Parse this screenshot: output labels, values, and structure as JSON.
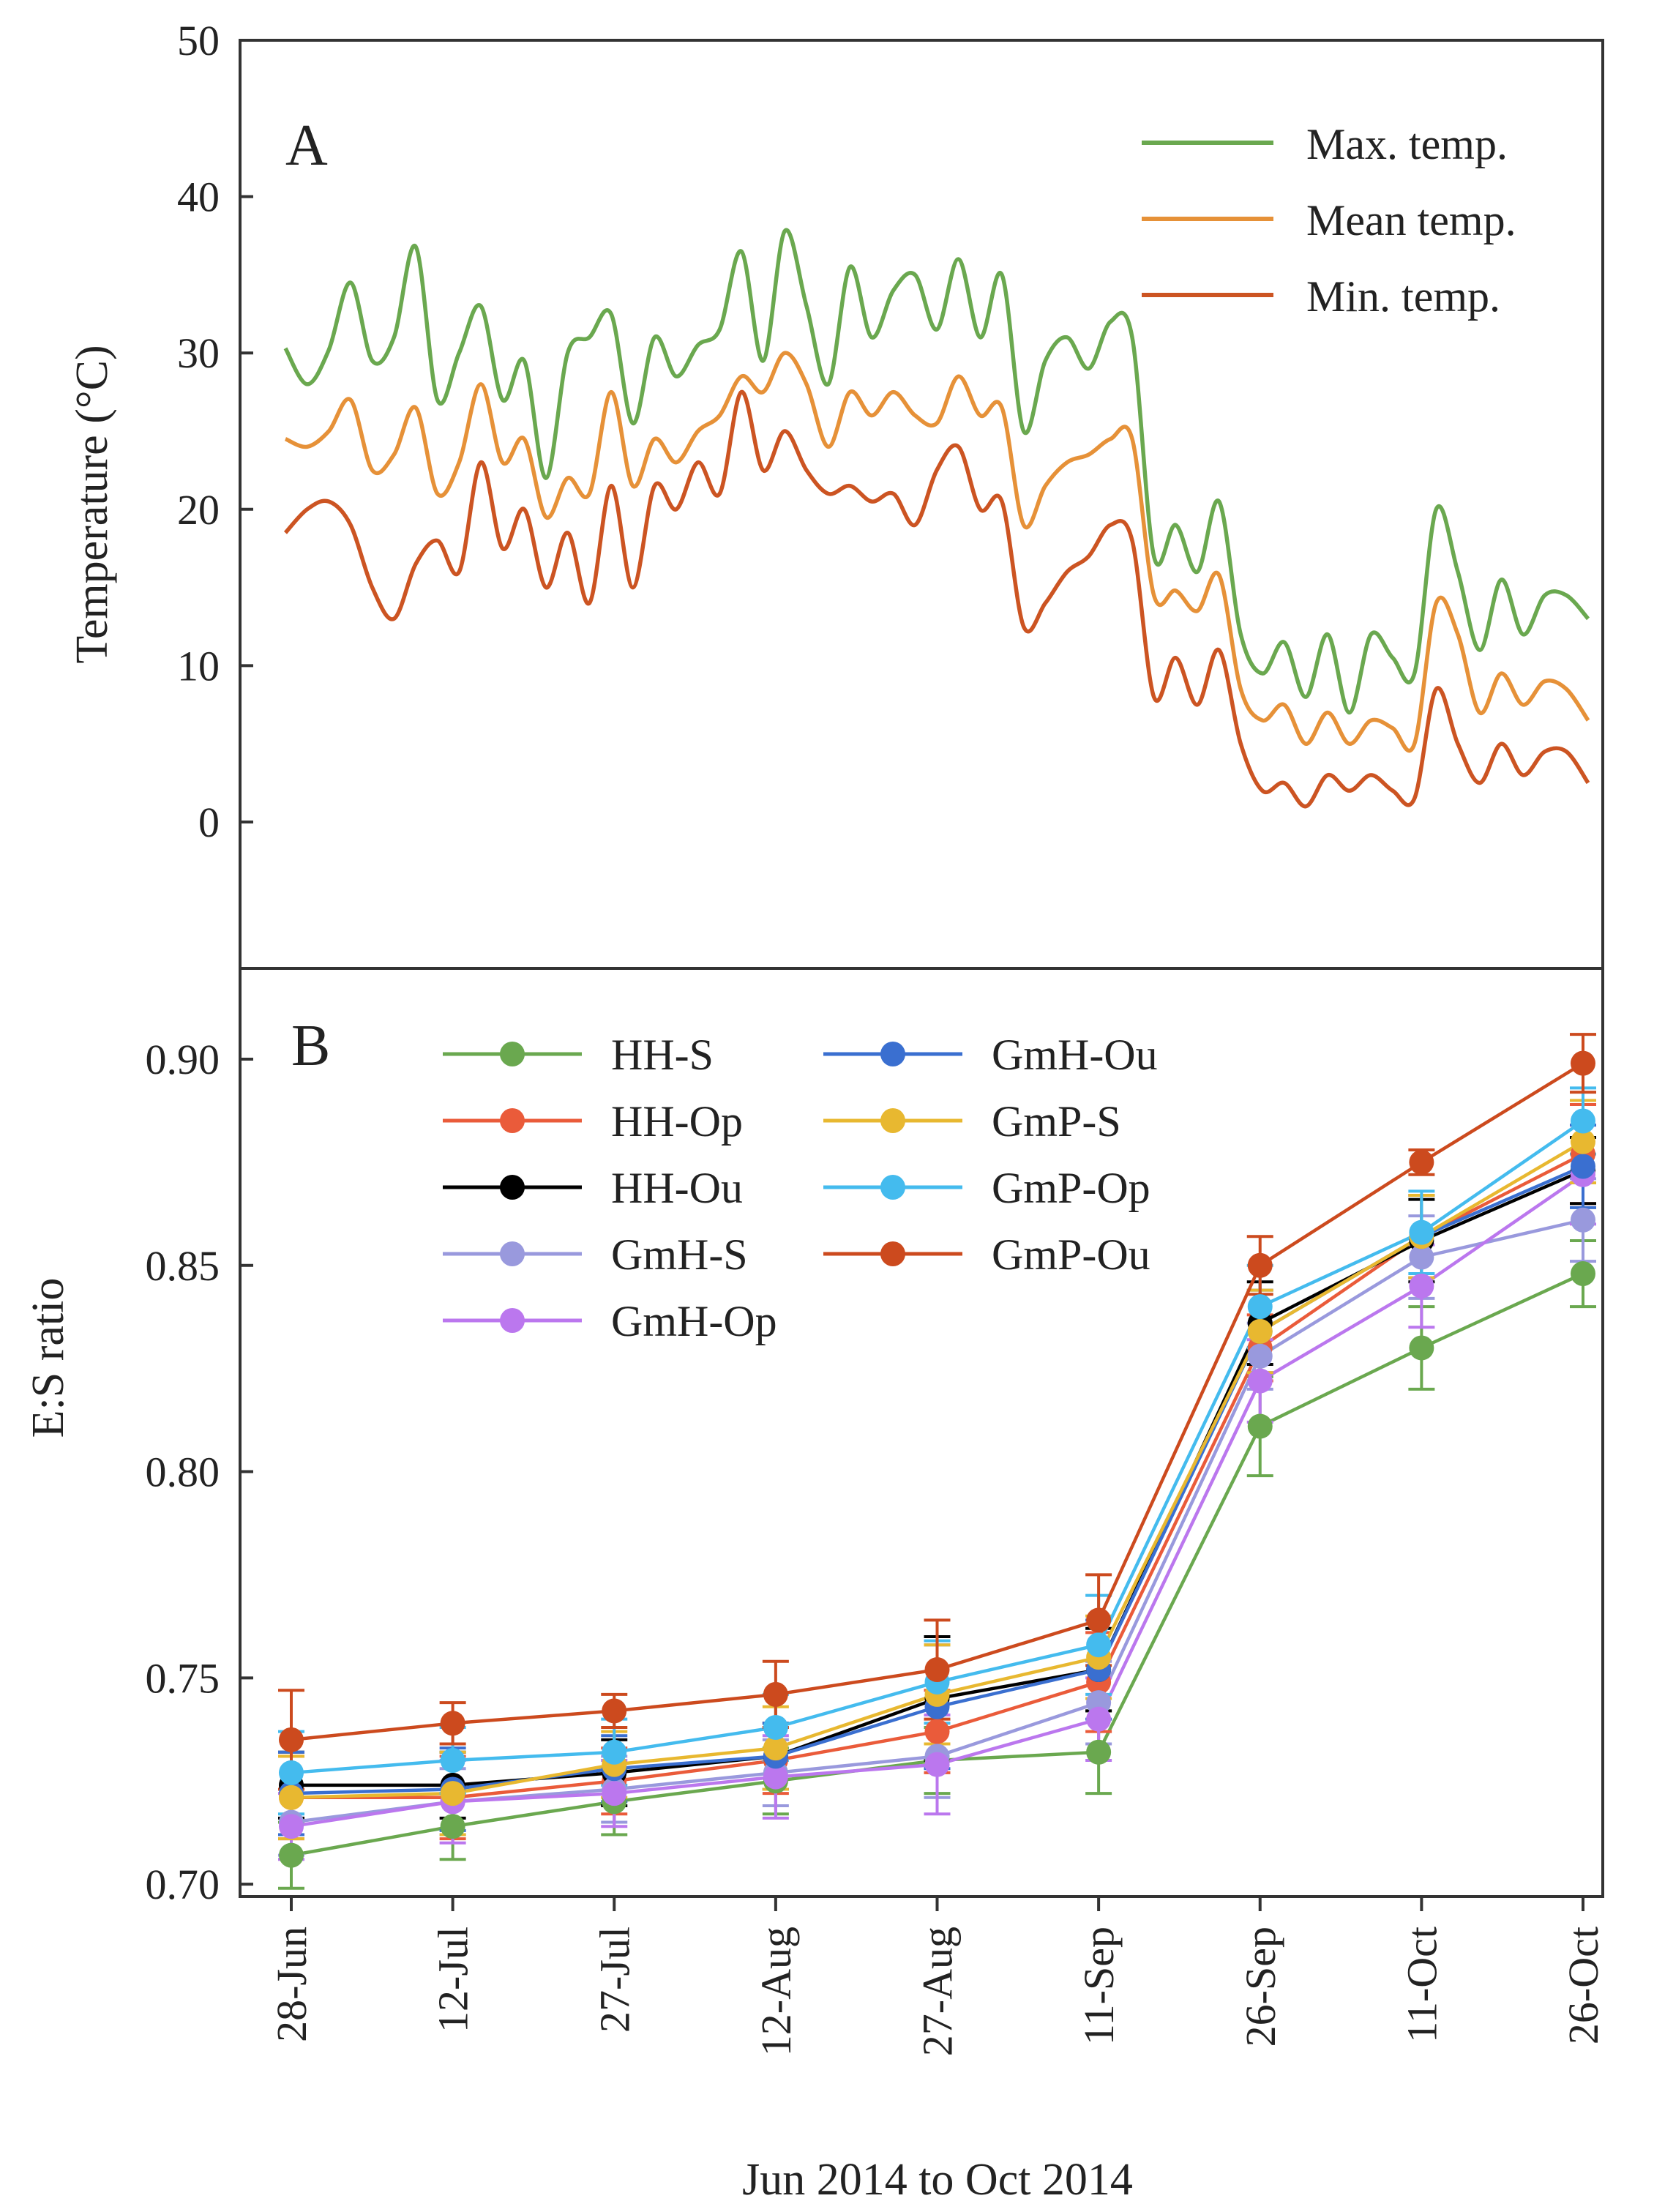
{
  "chart_data": [
    {
      "type": "line",
      "panel": "A",
      "ylabel": "Temperature (°C)",
      "ylim": [
        -10,
        50
      ],
      "yticks": [
        "0",
        "10",
        "20",
        "30",
        "40",
        "50"
      ],
      "ytick_values": [
        0,
        10,
        20,
        30,
        40,
        50
      ],
      "day_range": [
        0,
        120
      ],
      "legend_position": "top-right",
      "series": [
        {
          "name": "Max. temp.",
          "color": "#6aa84f",
          "x": [
            0,
            2,
            4,
            6,
            8,
            10,
            12,
            14,
            16,
            18,
            20,
            22,
            24,
            26,
            28,
            30,
            32,
            34,
            36,
            38,
            40,
            42,
            44,
            46,
            48,
            50,
            52,
            54,
            56,
            58,
            60,
            62,
            64,
            66,
            68,
            70,
            72,
            74,
            76,
            78,
            80,
            82,
            84,
            86,
            88,
            90,
            92,
            94,
            96,
            98,
            100,
            102,
            104,
            106,
            108,
            110,
            112,
            114,
            116,
            118,
            120
          ],
          "values": [
            30.3,
            28,
            30.2,
            34.5,
            29.5,
            31,
            36.8,
            27,
            30,
            33,
            27,
            29.5,
            22,
            30,
            31,
            32.5,
            25.5,
            31,
            28.5,
            30.5,
            31.5,
            36.5,
            29.5,
            37.8,
            33,
            28,
            35.5,
            31,
            34,
            35,
            31.5,
            36,
            31,
            35,
            25,
            29.5,
            31,
            29,
            32,
            31,
            17,
            19,
            16,
            20.5,
            12,
            9.5,
            11.5,
            8,
            12,
            7,
            12,
            10.5,
            9.5,
            20,
            16,
            11,
            15.5,
            12,
            14.5,
            14.5,
            13
          ]
        },
        {
          "name": "Mean temp.",
          "color": "#e69138",
          "x": [
            0,
            2,
            4,
            6,
            8,
            10,
            12,
            14,
            16,
            18,
            20,
            22,
            24,
            26,
            28,
            30,
            32,
            34,
            36,
            38,
            40,
            42,
            44,
            46,
            48,
            50,
            52,
            54,
            56,
            58,
            60,
            62,
            64,
            66,
            68,
            70,
            72,
            74,
            76,
            78,
            80,
            82,
            84,
            86,
            88,
            90,
            92,
            94,
            96,
            98,
            100,
            102,
            104,
            106,
            108,
            110,
            112,
            114,
            116,
            118,
            120
          ],
          "values": [
            24.5,
            24,
            25,
            27,
            22.5,
            23.5,
            26.5,
            21,
            23,
            28,
            23,
            24.5,
            19.5,
            22,
            21,
            27.5,
            21.5,
            24.5,
            23,
            25,
            26,
            28.5,
            27.5,
            30,
            28,
            24,
            27.5,
            26,
            27.5,
            26,
            25.5,
            28.5,
            26,
            26.5,
            19,
            21.5,
            23,
            23.5,
            24.5,
            24.5,
            14.5,
            14.8,
            13.5,
            15.8,
            8.5,
            6.5,
            7.5,
            5,
            7,
            5,
            6.5,
            6,
            5,
            14,
            12,
            7,
            9.5,
            7.5,
            9,
            8.5,
            6.5
          ]
        },
        {
          "name": "Min. temp.",
          "color": "#cc5422",
          "x": [
            0,
            2,
            4,
            6,
            8,
            10,
            12,
            14,
            16,
            18,
            20,
            22,
            24,
            26,
            28,
            30,
            32,
            34,
            36,
            38,
            40,
            42,
            44,
            46,
            48,
            50,
            52,
            54,
            56,
            58,
            60,
            62,
            64,
            66,
            68,
            70,
            72,
            74,
            76,
            78,
            80,
            82,
            84,
            86,
            88,
            90,
            92,
            94,
            96,
            98,
            100,
            102,
            104,
            106,
            108,
            110,
            112,
            114,
            116,
            118,
            120
          ],
          "values": [
            18.5,
            20,
            20.5,
            19,
            15,
            13,
            16.5,
            18,
            16,
            23,
            17.5,
            20,
            15,
            18.5,
            14,
            21.5,
            15,
            21.5,
            20,
            23,
            21,
            27.5,
            22.5,
            25,
            22.5,
            21,
            21.5,
            20.5,
            21,
            19,
            22.5,
            24,
            20,
            20.5,
            12.5,
            14,
            16,
            17,
            19,
            18,
            8,
            10.5,
            7.5,
            11,
            5,
            2,
            2.5,
            1,
            3,
            2,
            3,
            2,
            1.5,
            8.5,
            5,
            2.5,
            5,
            3,
            4.5,
            4.5,
            2.5
          ]
        }
      ]
    },
    {
      "type": "line",
      "panel": "B",
      "ylabel": "E:S ratio",
      "xlabel": "Jun 2014 to Oct 2014",
      "ylim": [
        0.697,
        0.922
      ],
      "yticks": [
        "0.70",
        "0.75",
        "0.80",
        "0.85",
        "0.90"
      ],
      "ytick_values": [
        0.7,
        0.75,
        0.8,
        0.85,
        0.9
      ],
      "categories": [
        "28-Jun",
        "12-Jul",
        "27-Jul",
        "12-Aug",
        "27-Aug",
        "11-Sep",
        "26-Sep",
        "11-Oct",
        "26-Oct"
      ],
      "legend_position": "top-left",
      "series": [
        {
          "name": "HH-S",
          "color": "#6aa84f",
          "values": [
            0.707,
            0.714,
            0.72,
            0.725,
            0.73,
            0.732,
            0.811,
            0.83,
            0.848
          ],
          "err": [
            0.008,
            0.008,
            0.008,
            0.008,
            0.008,
            0.01,
            0.012,
            0.01,
            0.008
          ]
        },
        {
          "name": "HH-Op",
          "color": "#ea5b3a",
          "values": [
            0.721,
            0.721,
            0.725,
            0.73,
            0.737,
            0.749,
            0.83,
            0.857,
            0.877
          ],
          "err": [
            0.01,
            0.01,
            0.008,
            0.008,
            0.01,
            0.012,
            0.008,
            0.01,
            0.012
          ]
        },
        {
          "name": "HH-Ou",
          "color": "#000000",
          "values": [
            0.724,
            0.724,
            0.727,
            0.731,
            0.745,
            0.752,
            0.836,
            0.856,
            0.873
          ],
          "err": [
            0.008,
            0.008,
            0.008,
            0.008,
            0.015,
            0.01,
            0.01,
            0.01,
            0.008
          ]
        },
        {
          "name": "GmH-S",
          "color": "#9999dd",
          "values": [
            0.715,
            0.72,
            0.723,
            0.727,
            0.731,
            0.744,
            0.828,
            0.852,
            0.861
          ],
          "err": [
            0.008,
            0.008,
            0.008,
            0.008,
            0.01,
            0.01,
            0.008,
            0.01,
            0.01
          ]
        },
        {
          "name": "GmH-Op",
          "color": "#bb77ee",
          "values": [
            0.714,
            0.72,
            0.722,
            0.726,
            0.729,
            0.74,
            0.822,
            0.845,
            0.872
          ],
          "err": [
            0.008,
            0.01,
            0.008,
            0.01,
            0.012,
            0.01,
            0.01,
            0.01,
            0.012
          ]
        },
        {
          "name": "GmH-Ou",
          "color": "#3a6fd0",
          "values": [
            0.722,
            0.723,
            0.728,
            0.731,
            0.743,
            0.752,
            0.834,
            0.857,
            0.874
          ],
          "err": [
            0.01,
            0.01,
            0.008,
            0.008,
            0.015,
            0.012,
            0.01,
            0.01,
            0.01
          ]
        },
        {
          "name": "GmP-S",
          "color": "#e8b830",
          "values": [
            0.721,
            0.722,
            0.729,
            0.733,
            0.746,
            0.755,
            0.834,
            0.857,
            0.88
          ],
          "err": [
            0.01,
            0.01,
            0.008,
            0.01,
            0.012,
            0.01,
            0.01,
            0.01,
            0.01
          ]
        },
        {
          "name": "GmP-Op",
          "color": "#44bbee",
          "values": [
            0.727,
            0.73,
            0.732,
            0.738,
            0.749,
            0.758,
            0.84,
            0.858,
            0.885
          ],
          "err": [
            0.01,
            0.008,
            0.008,
            0.008,
            0.01,
            0.012,
            0.01,
            0.01,
            0.008
          ]
        },
        {
          "name": "GmP-Ou",
          "color": "#cc4a1e",
          "values": [
            0.735,
            0.739,
            0.742,
            0.746,
            0.752,
            0.764,
            0.85,
            0.875,
            0.899
          ],
          "err": [
            0.012,
            0.005,
            0.004,
            0.008,
            0.012,
            0.011,
            0.007,
            0.003,
            0.007
          ]
        }
      ]
    }
  ]
}
